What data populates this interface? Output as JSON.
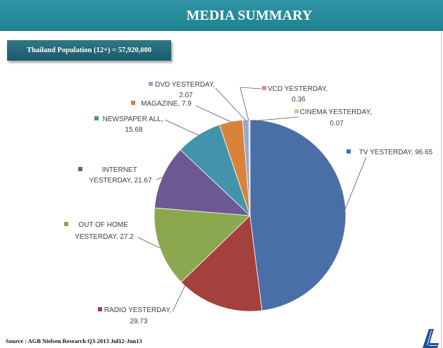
{
  "header": {
    "title": "MEDIA SUMMARY"
  },
  "population_box": {
    "text": "Thailand Population (12+) = 57,920,000"
  },
  "theme": {
    "header_bg": "#208c9c",
    "box_bg": "#1a6878",
    "label_color": "#404040"
  },
  "chart_data": {
    "type": "pie",
    "categories": [
      "TV YESTERDAY",
      "RADIO YESTERDAY",
      "OUT OF HOME YESTERDAY",
      "INTERNET YESTERDAY",
      "NEWSPAPER ALL",
      "MAGAZINE",
      "DVD YESTERDAY",
      "VCD YESTERDAY",
      "CINEMA YESTERDAY"
    ],
    "values": [
      96.65,
      29.73,
      27.2,
      21.67,
      15.68,
      7.9,
      2.07,
      0.36,
      0.07
    ],
    "colors": [
      "#4a6fa6",
      "#a4413d",
      "#8ba84f",
      "#6c5994",
      "#4393ad",
      "#d9833a",
      "#94a9d2",
      "#d68f8d",
      "#bcd292"
    ]
  },
  "footer": {
    "source": "Source : AGB Nielsen Research Q3-2013 Jul12-Jun13"
  }
}
